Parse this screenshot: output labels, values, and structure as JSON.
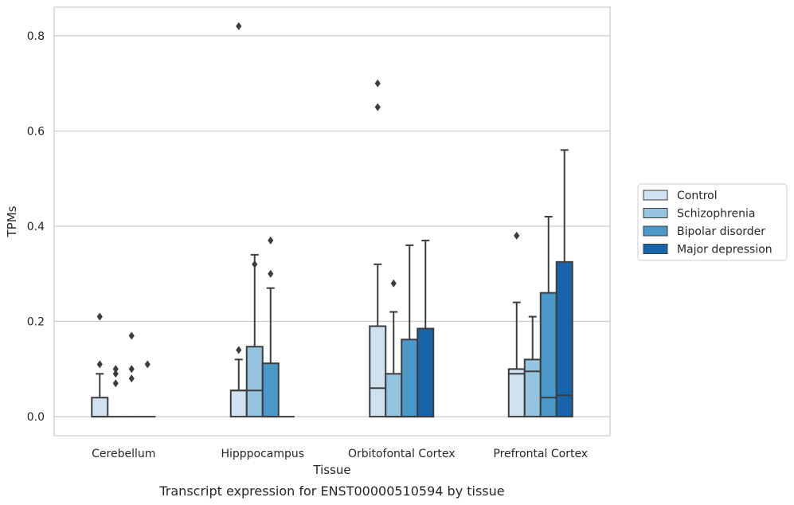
{
  "chart_data": {
    "type": "box",
    "caption": "Transcript expression for ENST00000510594 by tissue",
    "xlabel": "Tissue",
    "ylabel": "TPMs",
    "ylim": [
      -0.04,
      0.86
    ],
    "yticks": [
      0.0,
      0.2,
      0.4,
      0.6,
      0.8
    ],
    "ytick_labels": [
      "0.0",
      "0.2",
      "0.4",
      "0.6",
      "0.8"
    ],
    "grid": "horizontal",
    "legend_position": "right",
    "categories": [
      "Cerebellum",
      "Hipppocampus",
      "Orbitofontal Cortex",
      "Prefrontal Cortex"
    ],
    "series": [
      {
        "name": "Control",
        "color": "#d0e1f2",
        "boxes": [
          {
            "q1": 0.0,
            "median": 0.0,
            "q3": 0.04,
            "whislo": 0.0,
            "whishi": 0.09,
            "fliers": [
              0.11,
              0.21
            ]
          },
          {
            "q1": 0.0,
            "median": 0.055,
            "q3": 0.055,
            "whislo": 0.0,
            "whishi": 0.12,
            "fliers": [
              0.14,
              0.82
            ]
          },
          {
            "q1": 0.0,
            "median": 0.06,
            "q3": 0.19,
            "whislo": 0.0,
            "whishi": 0.32,
            "fliers": [
              0.7,
              0.65
            ]
          },
          {
            "q1": 0.0,
            "median": 0.09,
            "q3": 0.1,
            "whislo": 0.0,
            "whishi": 0.24,
            "fliers": [
              0.38
            ]
          }
        ]
      },
      {
        "name": "Schizophrenia",
        "color": "#94c4df",
        "boxes": [
          {
            "q1": 0.0,
            "median": 0.0,
            "q3": 0.0,
            "whislo": 0.0,
            "whishi": 0.0,
            "fliers": [
              0.07,
              0.09,
              0.1
            ]
          },
          {
            "q1": 0.0,
            "median": 0.055,
            "q3": 0.147,
            "whislo": 0.0,
            "whishi": 0.34,
            "fliers": [
              0.32
            ]
          },
          {
            "q1": 0.0,
            "median": 0.0,
            "q3": 0.09,
            "whislo": 0.0,
            "whishi": 0.22,
            "fliers": [
              0.28
            ]
          },
          {
            "q1": 0.0,
            "median": 0.095,
            "q3": 0.12,
            "whislo": 0.0,
            "whishi": 0.21,
            "fliers": []
          }
        ]
      },
      {
        "name": "Bipolar disorder",
        "color": "#4a98c9",
        "boxes": [
          {
            "q1": 0.0,
            "median": 0.0,
            "q3": 0.0,
            "whislo": 0.0,
            "whishi": 0.0,
            "fliers": [
              0.08,
              0.1,
              0.17
            ]
          },
          {
            "q1": 0.0,
            "median": 0.0,
            "q3": 0.112,
            "whislo": 0.0,
            "whishi": 0.27,
            "fliers": [
              0.3,
              0.37
            ]
          },
          {
            "q1": 0.0,
            "median": 0.0,
            "q3": 0.162,
            "whislo": 0.0,
            "whishi": 0.36,
            "fliers": []
          },
          {
            "q1": 0.0,
            "median": 0.04,
            "q3": 0.26,
            "whislo": 0.0,
            "whishi": 0.42,
            "fliers": []
          }
        ]
      },
      {
        "name": "Major depression",
        "color": "#1764ab",
        "boxes": [
          {
            "q1": 0.0,
            "median": 0.0,
            "q3": 0.0,
            "whislo": 0.0,
            "whishi": 0.0,
            "fliers": [
              0.11
            ]
          },
          {
            "q1": 0.0,
            "median": 0.0,
            "q3": 0.0,
            "whislo": 0.0,
            "whishi": 0.0,
            "fliers": []
          },
          {
            "q1": 0.0,
            "median": 0.0,
            "q3": 0.185,
            "whislo": 0.0,
            "whishi": 0.37,
            "fliers": []
          },
          {
            "q1": 0.0,
            "median": 0.045,
            "q3": 0.325,
            "whislo": 0.0,
            "whishi": 0.56,
            "fliers": []
          }
        ]
      }
    ]
  }
}
